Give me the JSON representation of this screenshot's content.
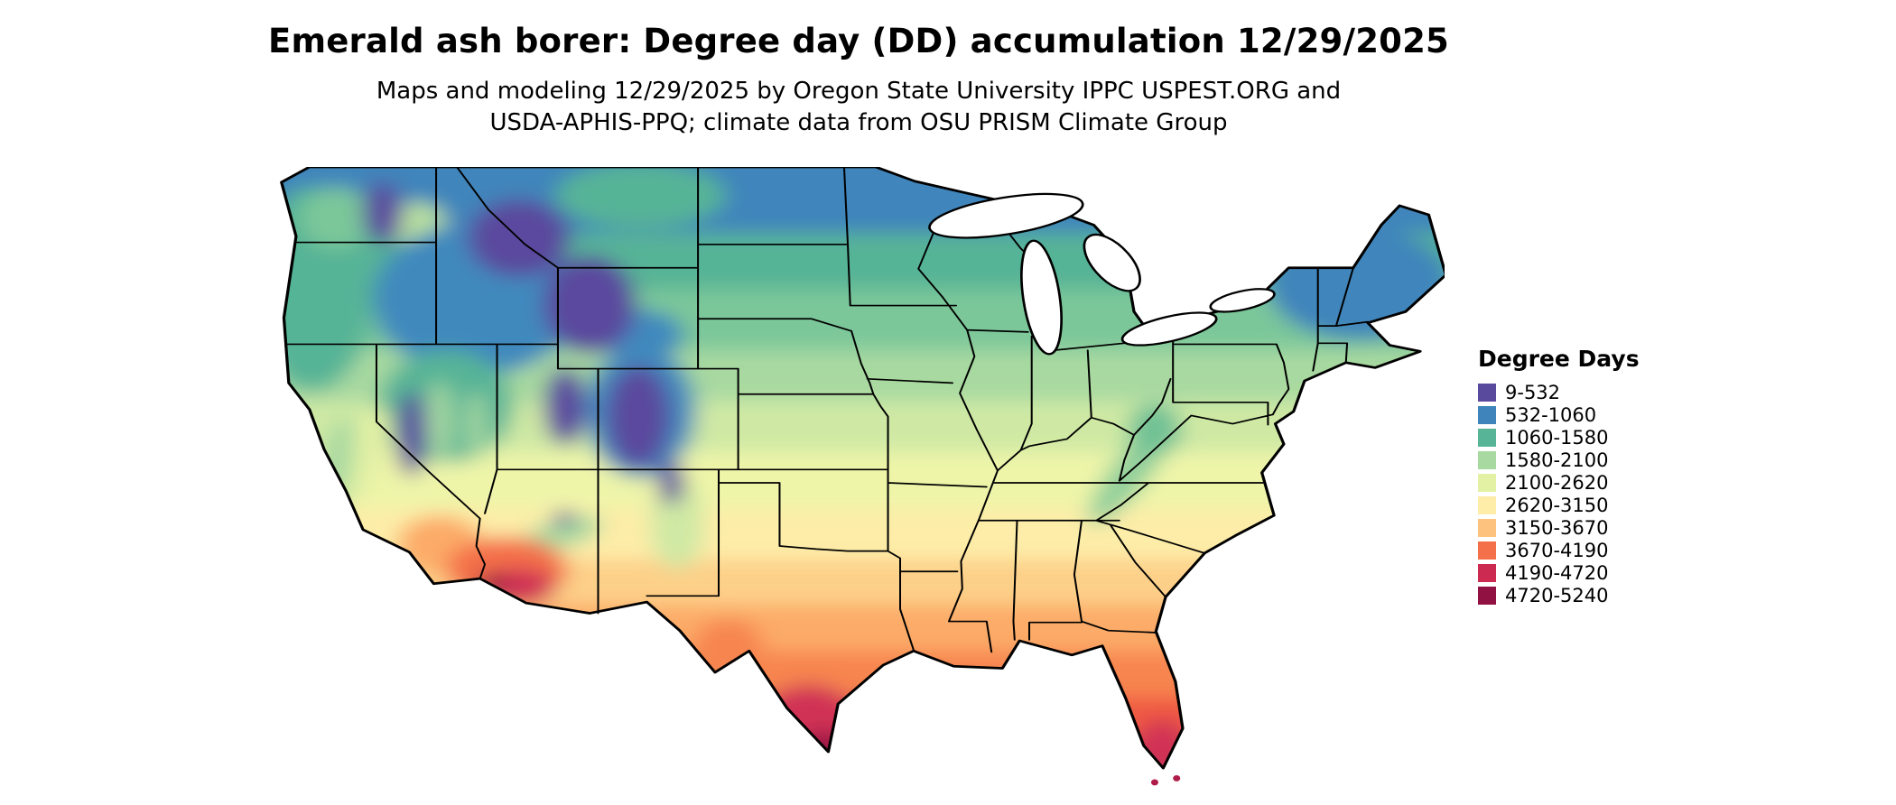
{
  "header": {
    "title": "Emerald ash borer: Degree day (DD) accumulation 12/29/2025",
    "subtitle_line1": "Maps and modeling 12/29/2025 by Oregon State University IPPC USPEST.ORG and",
    "subtitle_line2": "USDA-APHIS-PPQ; climate data from OSU PRISM Climate Group"
  },
  "map": {
    "description": "Conterminous United States choropleth of emerald ash borer degree-day accumulation"
  },
  "legend": {
    "title": "Degree Days",
    "entries": [
      {
        "label": "9-532",
        "color": "#5a4a9e"
      },
      {
        "label": "532-1060",
        "color": "#3f85bb"
      },
      {
        "label": "1060-1580",
        "color": "#57b496"
      },
      {
        "label": "1580-2100",
        "color": "#a8d9a0"
      },
      {
        "label": "2100-2620",
        "color": "#e3f1a5"
      },
      {
        "label": "2620-3150",
        "color": "#fdeda8"
      },
      {
        "label": "3150-3670",
        "color": "#fdc27e"
      },
      {
        "label": "3670-4190",
        "color": "#f4704a"
      },
      {
        "label": "4190-4720",
        "color": "#cc2a50"
      },
      {
        "label": "4720-5240",
        "color": "#911143"
      }
    ]
  }
}
